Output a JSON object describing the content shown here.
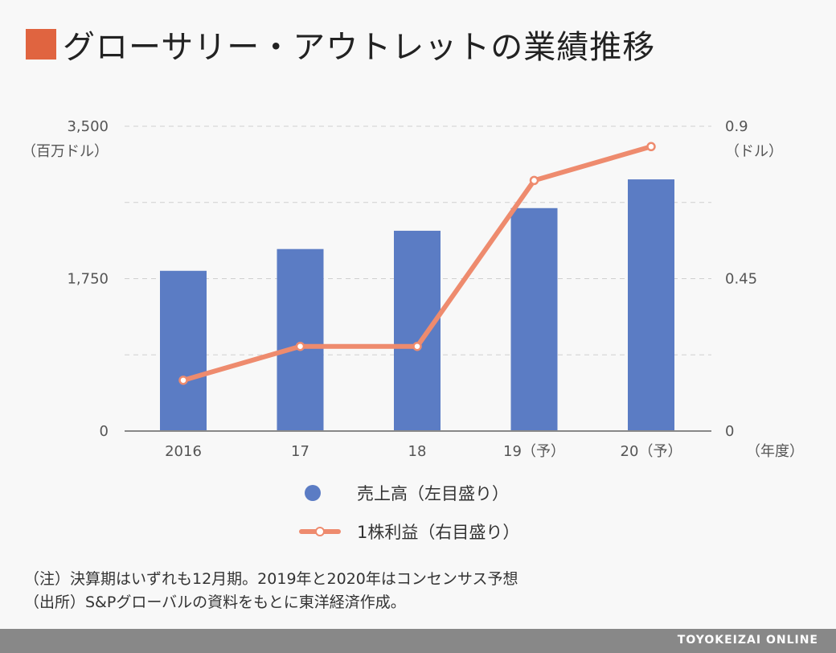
{
  "title": "グローサリー・アウトレットの業績推移",
  "colors": {
    "title_square": "#e06440",
    "bar": "#5b7cc4",
    "line": "#ee8b6e",
    "grid": "#d0d0d0",
    "axis": "#888888",
    "footer": "#888888"
  },
  "chart_data": {
    "type": "bar",
    "categories": [
      "2016",
      "17",
      "18",
      "19（予）",
      "20（予）"
    ],
    "series": [
      {
        "name": "売上高（左目盛り）",
        "type": "bar",
        "axis": "left",
        "values": [
          1840,
          2090,
          2300,
          2560,
          2890
        ]
      },
      {
        "name": "1株利益（右目盛り）",
        "type": "line",
        "axis": "right",
        "values": [
          0.15,
          0.25,
          0.25,
          0.74,
          0.84
        ]
      }
    ],
    "y_left": {
      "range": [
        0,
        3500
      ],
      "ticks": [
        "0",
        "1,750",
        "3,500"
      ],
      "unit": "（百万ドル）"
    },
    "y_right": {
      "range": [
        0,
        0.9
      ],
      "ticks": [
        "0",
        "0.45",
        "0.9"
      ],
      "unit": "（ドル）"
    },
    "x_unit": "（年度）",
    "grid": true,
    "legend_position": "bottom-center"
  },
  "legend": {
    "items": [
      {
        "label": "売上高（左目盛り）"
      },
      {
        "label": "1株利益（右目盛り）"
      }
    ]
  },
  "notes": {
    "line1": "（注）決算期はいずれも12月期。2019年と2020年はコンセンサス予想",
    "line2": "（出所）S&Pグローバルの資料をもとに東洋経済作成。"
  },
  "footer": {
    "brand": "TOYOKEIZAI ONLINE"
  }
}
